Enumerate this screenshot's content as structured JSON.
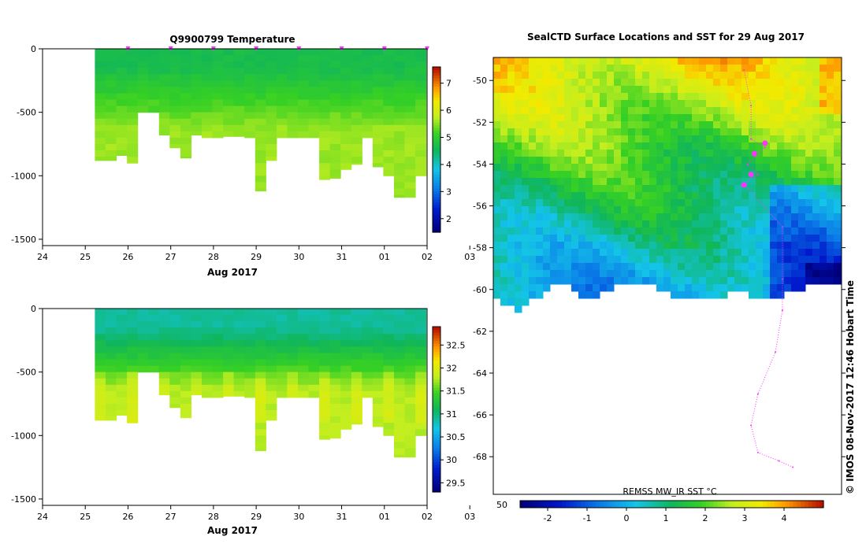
{
  "panels": {
    "temperature": {
      "title": "Q9900799  Temperature",
      "xlabel": "Aug 2017",
      "x_tick_labels": [
        "24",
        "25",
        "26",
        "27",
        "28",
        "29",
        "30",
        "31",
        "01",
        "02",
        "03"
      ],
      "y_tick_labels": [
        "0",
        "-500",
        "-1000",
        "-1500"
      ],
      "colorbar_tick_labels": [
        "2",
        "3",
        "4",
        "5",
        "6",
        "7"
      ]
    },
    "salinity": {
      "title": "",
      "xlabel": "Aug 2017",
      "x_tick_labels": [
        "24",
        "25",
        "26",
        "27",
        "28",
        "29",
        "30",
        "31",
        "01",
        "02",
        "03"
      ],
      "y_tick_labels": [
        "0",
        "-500",
        "-1000",
        "-1500"
      ],
      "colorbar_tick_labels": [
        "29.5",
        "30",
        "30.5",
        "31",
        "31.5",
        "32",
        "32.5"
      ]
    },
    "map": {
      "title": "SealCTD Surface Locations and SST for 29 Aug 2017",
      "y_tick_labels": [
        "-50",
        "-52",
        "-54",
        "-56",
        "-58",
        "-60",
        "-62",
        "-64",
        "-66",
        "-68"
      ],
      "x_tick_first": "50",
      "colorbar_label": "REMSS MW_IR SST °C",
      "colorbar_tick_labels": [
        "-2",
        "-1",
        "0",
        "1",
        "2",
        "3",
        "4"
      ],
      "side_text": "©  IMOS 08-Nov-2017 12:46 Hobart Time"
    }
  },
  "colors": {
    "track": "#ff33ff",
    "axis": "#000000"
  },
  "chart_data": [
    {
      "type": "heatmap",
      "title": "Q9900799  Temperature",
      "xlabel": "Aug 2017",
      "ylabel": "",
      "xlim": [
        24,
        33
      ],
      "ylim": [
        -1550,
        0
      ],
      "colorbar_range": [
        1.5,
        7.6
      ],
      "profile_x": [
        25.35,
        25.6,
        25.85,
        26.1,
        26.35,
        26.6,
        26.85,
        27.1,
        27.35,
        27.6,
        27.85,
        28.1,
        28.35,
        28.6,
        28.85,
        29.1,
        29.35,
        29.6,
        29.85,
        30.1,
        30.35,
        30.6,
        30.85,
        31.1,
        31.35,
        31.6,
        31.85,
        32.1,
        32.35,
        32.6,
        32.85
      ],
      "profile_max_depth": [
        -880,
        -880,
        -840,
        -900,
        -500,
        -500,
        -680,
        -780,
        -860,
        -680,
        -700,
        -700,
        -690,
        -690,
        -700,
        -1120,
        -880,
        -700,
        -700,
        -700,
        -700,
        -1030,
        -1020,
        -950,
        -910,
        -700,
        -930,
        -1000,
        -1170,
        -1170,
        -1000
      ],
      "surface_temperature": 4.7,
      "deep_temperature": 5.6,
      "profile_markers_x": [
        26,
        27,
        28,
        29,
        30,
        31,
        32,
        33
      ]
    },
    {
      "type": "heatmap",
      "title": "",
      "xlabel": "Aug 2017",
      "ylabel": "",
      "xlim": [
        24,
        33
      ],
      "ylim": [
        -1550,
        0
      ],
      "colorbar_range": [
        29.3,
        32.9
      ],
      "surface_salinity": 30.9,
      "deep_salinity": 31.8
    },
    {
      "type": "heatmap",
      "title": "SealCTD Surface Locations and SST for 29 Aug 2017",
      "ylim": [
        -69.8,
        -48.9
      ],
      "colorbar_range": [
        -2.7,
        5.0
      ],
      "ice_edge_lat": -60,
      "track_points": [
        [
          -49.5,
          0.72
        ],
        [
          -51.2,
          0.74
        ],
        [
          -52.8,
          0.74
        ],
        [
          -53.2,
          0.78
        ],
        [
          -54.0,
          0.73
        ],
        [
          -54.5,
          0.76
        ],
        [
          -55.0,
          0.72
        ],
        [
          -57.0,
          0.83
        ],
        [
          -59.5,
          0.83
        ],
        [
          -61.0,
          0.83
        ],
        [
          -63.0,
          0.81
        ],
        [
          -65.0,
          0.76
        ],
        [
          -66.5,
          0.74
        ],
        [
          -67.8,
          0.76
        ],
        [
          -68.2,
          0.82
        ],
        [
          -68.5,
          0.86
        ]
      ],
      "highlight_positions": [
        [
          -53.0,
          0.78
        ],
        [
          -53.5,
          0.75
        ],
        [
          -54.5,
          0.74
        ],
        [
          -55.0,
          0.72
        ]
      ]
    }
  ]
}
